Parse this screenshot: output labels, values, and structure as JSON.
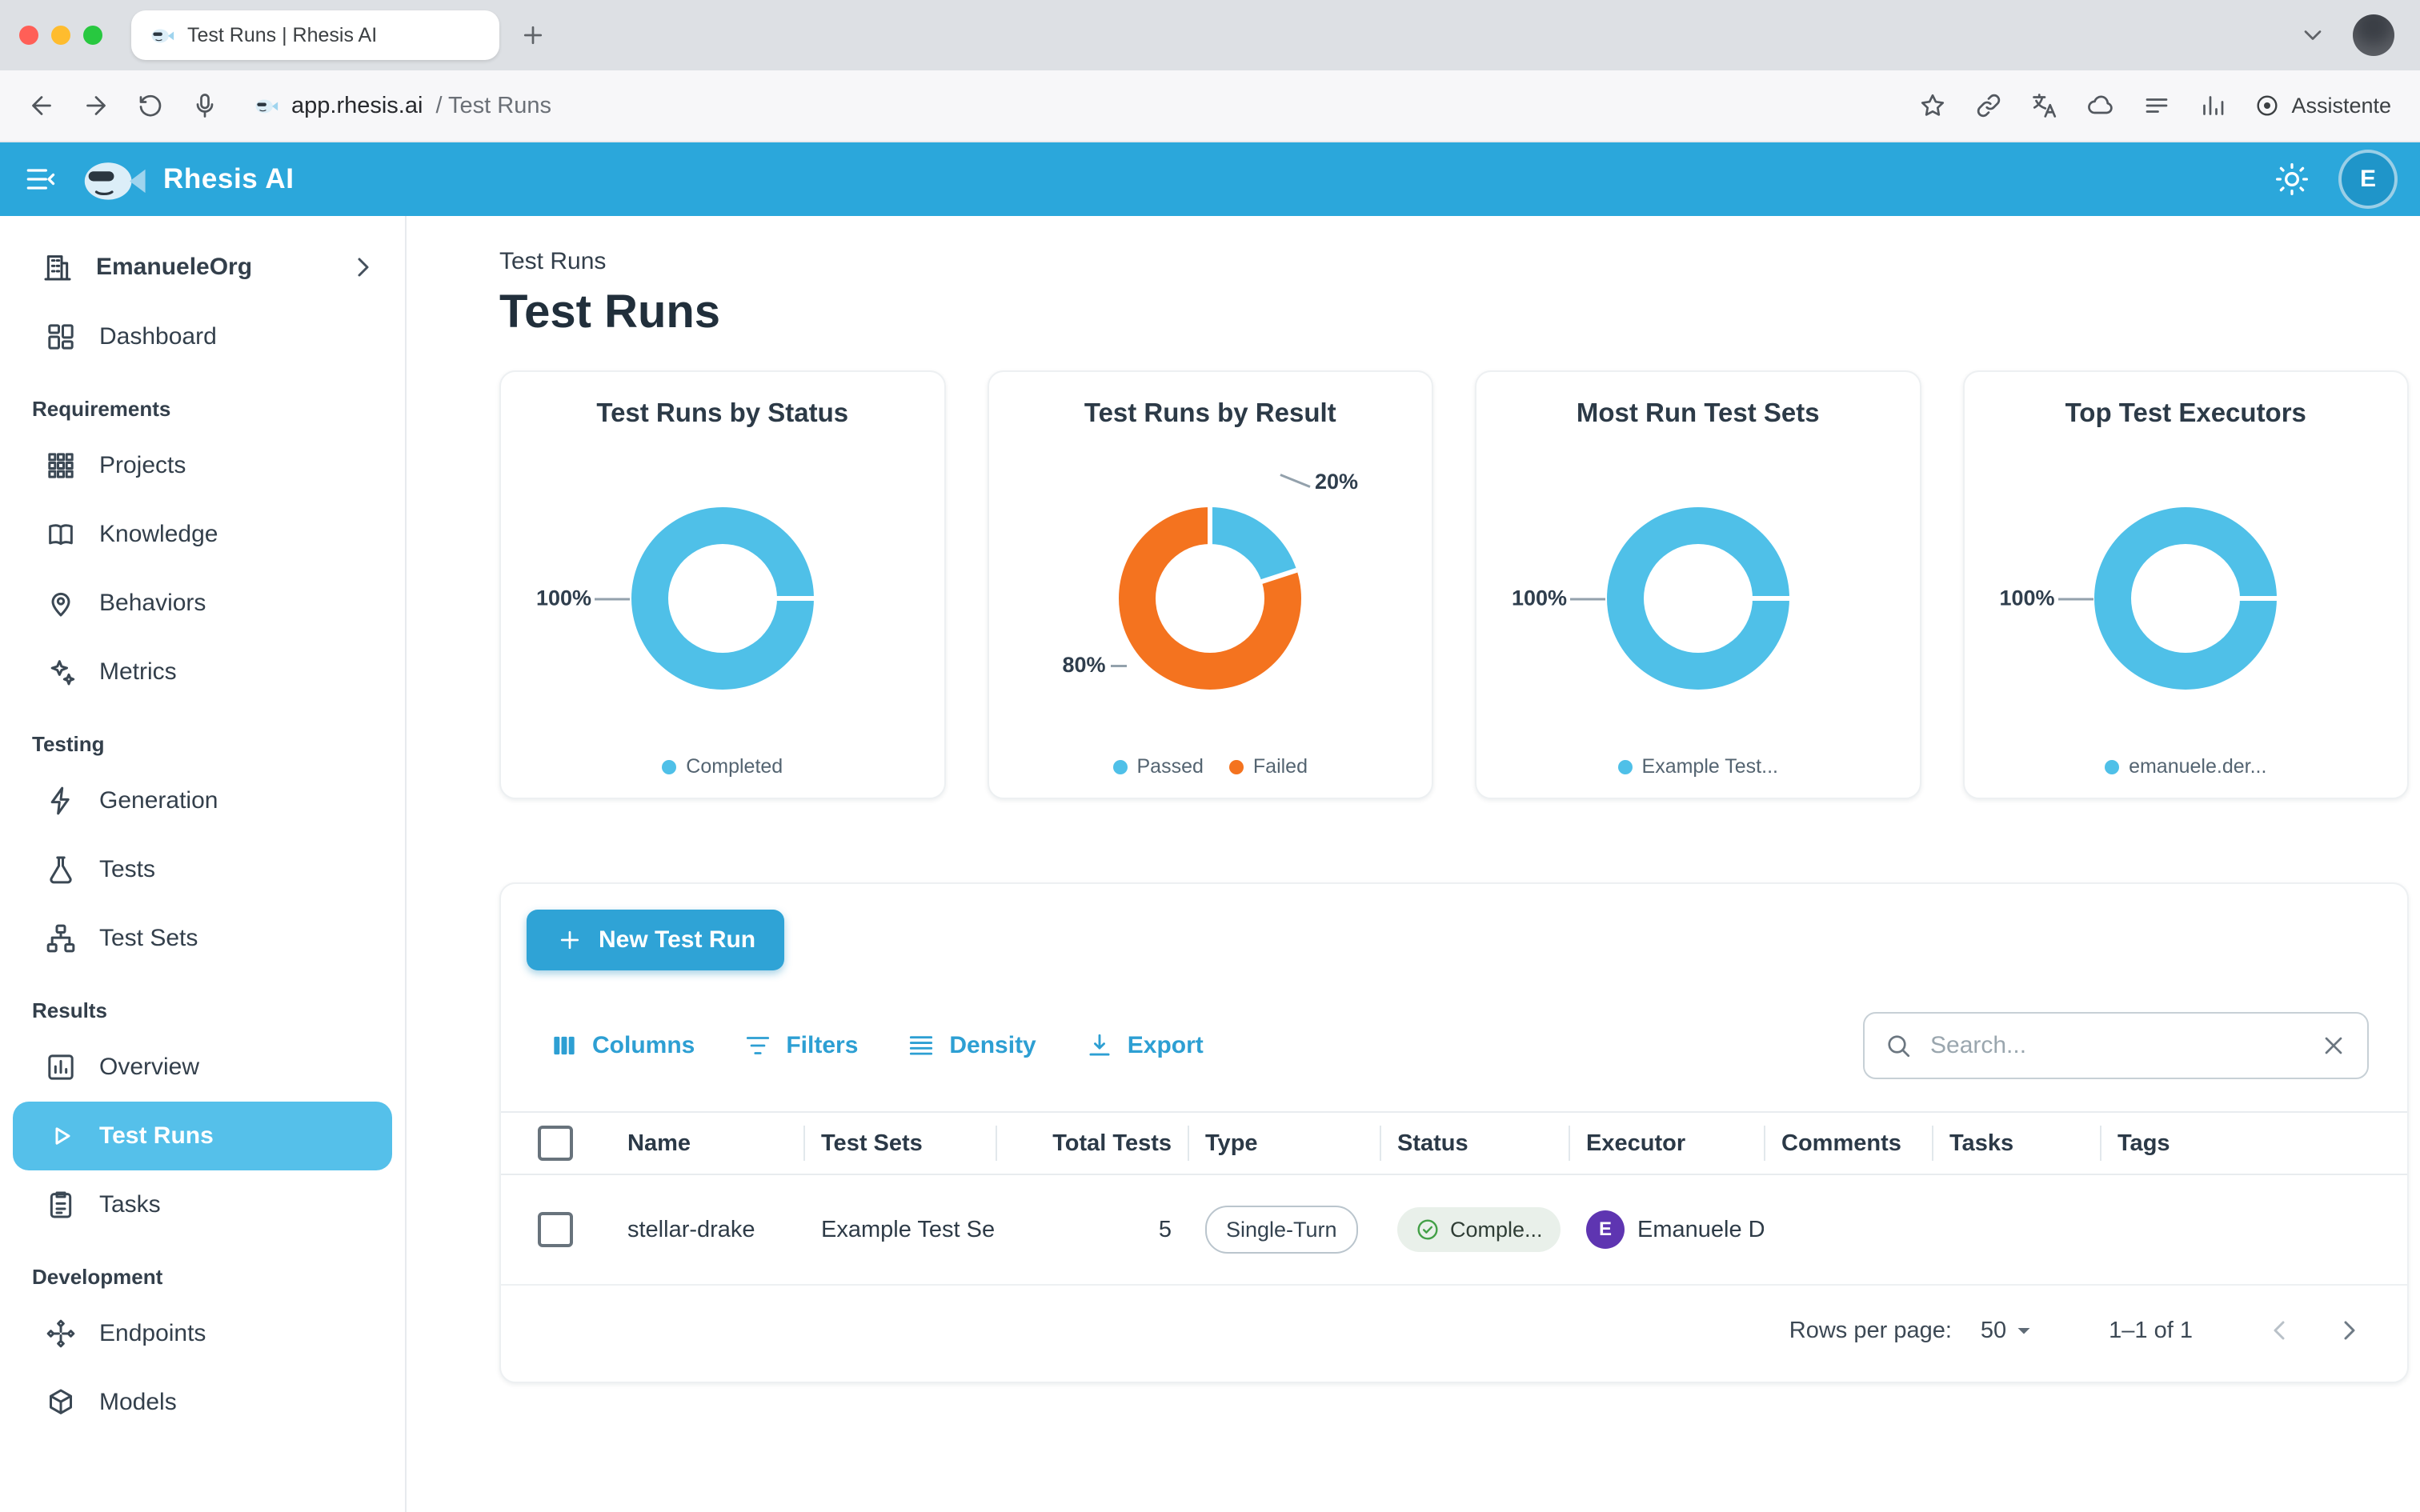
{
  "browser": {
    "tab_title": "Test Runs | Rhesis AI",
    "url_host": "app.rhesis.ai",
    "url_path": "/ Test Runs",
    "assistant_label": "Assistente"
  },
  "appbar": {
    "brand": "Rhesis AI",
    "avatar_initial": "E"
  },
  "sidebar": {
    "org": {
      "label": "EmanueleOrg",
      "icon": "org"
    },
    "sections": [
      {
        "label": null,
        "items": [
          {
            "label": "Dashboard",
            "icon": "dashboard"
          }
        ]
      },
      {
        "label": "Requirements",
        "items": [
          {
            "label": "Projects",
            "icon": "projects"
          },
          {
            "label": "Knowledge",
            "icon": "knowledge"
          },
          {
            "label": "Behaviors",
            "icon": "behaviors"
          },
          {
            "label": "Metrics",
            "icon": "metrics"
          }
        ]
      },
      {
        "label": "Testing",
        "items": [
          {
            "label": "Generation",
            "icon": "generation"
          },
          {
            "label": "Tests",
            "icon": "tests"
          },
          {
            "label": "Test Sets",
            "icon": "test-sets"
          }
        ]
      },
      {
        "label": "Results",
        "items": [
          {
            "label": "Overview",
            "icon": "overview"
          },
          {
            "label": "Test Runs",
            "icon": "test-runs",
            "selected": true
          },
          {
            "label": "Tasks",
            "icon": "tasks"
          }
        ]
      },
      {
        "label": "Development",
        "items": [
          {
            "label": "Endpoints",
            "icon": "endpoints"
          },
          {
            "label": "Models",
            "icon": "models"
          }
        ]
      }
    ]
  },
  "page": {
    "eyebrow": "Test Runs",
    "title": "Test Runs"
  },
  "charts": [
    {
      "type": "donut",
      "title": "Test Runs by Status",
      "slices": [
        {
          "label": "Completed",
          "pct": 100,
          "color": "#4fc0e8"
        }
      ]
    },
    {
      "type": "donut",
      "title": "Test Runs by Result",
      "slices": [
        {
          "label": "Passed",
          "pct": 20,
          "color": "#4fc0e8"
        },
        {
          "label": "Failed",
          "pct": 80,
          "color": "#f4731f"
        }
      ]
    },
    {
      "type": "donut",
      "title": "Most Run Test Sets",
      "slices": [
        {
          "label": "Example Test...",
          "pct": 100,
          "color": "#4fc0e8"
        }
      ]
    },
    {
      "type": "donut",
      "title": "Top Test Executors",
      "slices": [
        {
          "label": "emanuele.der...",
          "pct": 100,
          "color": "#4fc0e8"
        }
      ]
    }
  ],
  "table": {
    "new_button": "New Test Run",
    "toolbar": [
      "Columns",
      "Filters",
      "Density",
      "Export"
    ],
    "search_placeholder": "Search...",
    "columns": [
      "Name",
      "Test Sets",
      "Total Tests",
      "Type",
      "Status",
      "Executor",
      "Comments",
      "Tasks",
      "Tags"
    ],
    "rows": [
      {
        "name": "stellar-drake",
        "test_sets": "Example Test Se",
        "total_tests": "5",
        "type": "Single-Turn",
        "status": "Comple...",
        "executor_initial": "E",
        "executor_name": "Emanuele D",
        "comments": "",
        "tasks": "",
        "tags": ""
      }
    ],
    "footer": {
      "rows_per_page_label": "Rows per page:",
      "rows_per_page_value": "50",
      "range_label": "1–1 of 1"
    }
  },
  "colors": {
    "appbar_blue": "#2ba7db",
    "accent_blue": "#2d9fd3",
    "selected_item": "#55c0ea",
    "donut_blue": "#4fc0e8",
    "donut_orange": "#f4731f",
    "status_green": "#43a047",
    "executor_avatar_purple": "#5e35b1"
  }
}
